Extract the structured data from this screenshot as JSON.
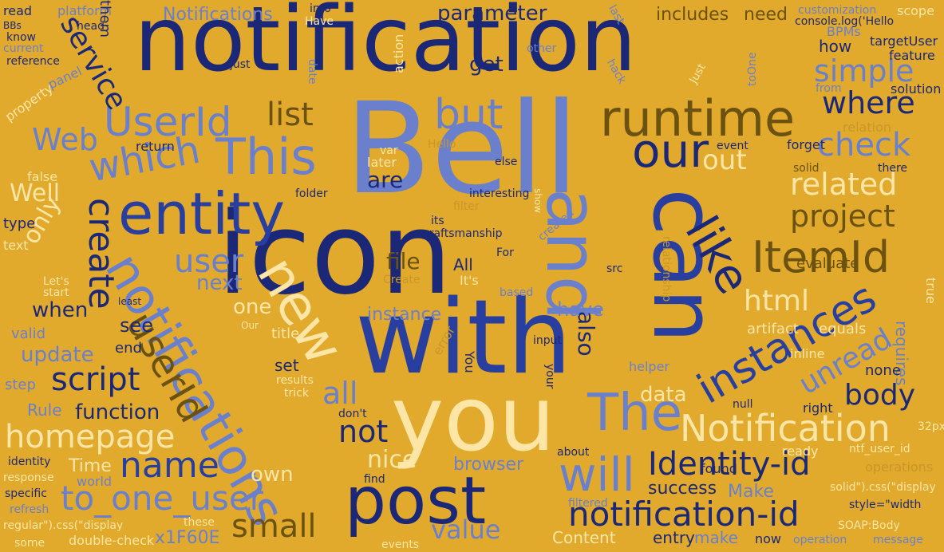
{
  "word_cloud": {
    "background": "#e2aa2c",
    "palette": [
      "#1b2878",
      "#283fa0",
      "#6a80cc",
      "#6b5210",
      "#ffe6a6",
      "#c8962a",
      "#f4c75e"
    ],
    "words": {
      "notification": "notification",
      "bell": "Bell",
      "icon": "icon",
      "with": "with",
      "you": "you",
      "and": "and",
      "can": "can",
      "post": "post",
      "entity": "entity",
      "notifications": "notifications",
      "new": "new",
      "runtime": "runtime",
      "like": "like",
      "itemid": "ItemId",
      "instances": "instances",
      "userid_cap": "UserId",
      "userid": "userId",
      "this": "This",
      "our": "our",
      "which": "which",
      "but": "but",
      "the": "The",
      "will": "will",
      "notification_cap": "Notification",
      "identity_id": "Identity-id",
      "notification_id": "notification-id",
      "to_one_user": "to_one_user",
      "homepage": "homepage",
      "name": "name",
      "small": "small",
      "script": "script",
      "create": "create",
      "user": "user",
      "service": "service",
      "web": "Web",
      "list": "list",
      "check": "check",
      "project": "project",
      "related": "related",
      "simple": "simple",
      "where": "where",
      "unread": "unread",
      "html": "html",
      "body": "body",
      "out": "out",
      "parameter": "parameter",
      "includes": "includes",
      "need": "need",
      "notifications_cap": "Notifications",
      "value": "value",
      "nice": "nice",
      "not": "not",
      "all": "all",
      "file": "file",
      "data": "data",
      "also": "also",
      "well": "Well",
      "only": "only",
      "update": "update",
      "function": "function",
      "when": "when",
      "instance": "instance",
      "next": "next",
      "one": "one",
      "see": "see",
      "are": "are",
      "get": "get",
      "have": "have",
      "own": "own",
      "make": "Make",
      "make_lc": "make",
      "content": "Content",
      "entry": "entry",
      "success": "success",
      "browser": "browser",
      "rule": "Rule",
      "time": "Time",
      "x1f60e": "x1F60E",
      "requires": "requires",
      "evaluate": "evaluate",
      "artifact": "artifact",
      "equals": "equals",
      "none": "none",
      "right": "right",
      "solution": "solution",
      "feature": "feature",
      "targetuser": "targetUser",
      "bpms": "BPMs",
      "console_log": "console.log('Hello",
      "customization": "customization",
      "scope": "scope",
      "how": "how",
      "from": "from",
      "relation": "relation",
      "event": "event",
      "forget": "forget",
      "solid": "solid",
      "there": "there",
      "true": "true",
      "inline": "inline",
      "null": "null",
      "ready": "ready",
      "found": "found",
      "ntf_user_id": "ntf_user_id",
      "operations": "operations",
      "style_width": "style=\"width",
      "solid_css": "solid\").css(\"display",
      "soap_body": "SOAP:Body",
      "operation": "operation",
      "message": "message",
      "px32": "32px",
      "filtered": "filtered",
      "about": "about",
      "now": "now",
      "double_check": "double-check",
      "some": "some",
      "regular_css": "regular\").css(\"display",
      "refresh": "refresh",
      "specific": "specific",
      "response": "response",
      "identity": "identity",
      "world": "world",
      "step": "step",
      "valid": "valid",
      "end": "end",
      "set": "set",
      "title": "title",
      "false": "false",
      "type": "type",
      "text": "text",
      "lets_start": "Let's\nstart",
      "return": "return",
      "panel": "panel",
      "property": "property",
      "reference": "reference",
      "current": "current",
      "know": "know",
      "bbs": "BBs",
      "read": "read",
      "platform": "platform",
      "head": "head",
      "them": "them",
      "into": "into",
      "have_cap": "Have",
      "just": "just",
      "action": "action",
      "later": "later",
      "hello": "Hello",
      "interesting": "interesting",
      "folder": "folder",
      "filter": "filter",
      "its": "its",
      "craftsmanship": "craftsmanship",
      "for": "For",
      "all_cap": "All",
      "its_cap": "It's",
      "create_cap": "Create",
      "created": "created",
      "based": "based",
      "src": "src",
      "helper": "helper",
      "relationship": "relationship",
      "input": "input",
      "error": "error",
      "you_cap": "You",
      "your": "your",
      "results": "results",
      "trick": "trick",
      "dont": "don't",
      "these": "these",
      "events": "events",
      "find": "find",
      "our_cap": "Our",
      "last": "last",
      "just_cap": "Just",
      "toone": "toOne",
      "hack": "hack",
      "other": "other",
      "date": "date",
      "else": "else",
      "show": "show",
      "var": "var",
      "least": "least"
    }
  }
}
